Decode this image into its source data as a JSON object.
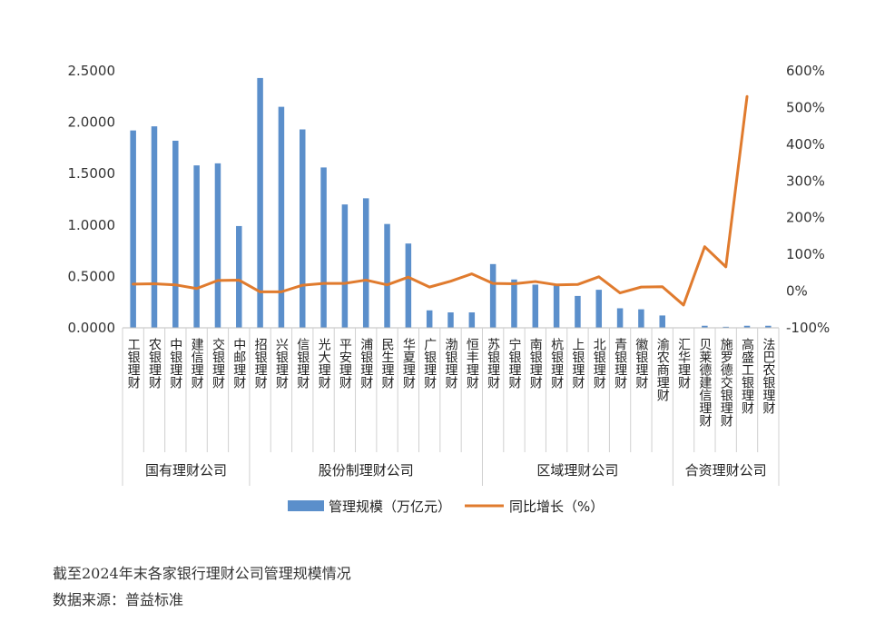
{
  "chart_data": {
    "type": "bar+line",
    "categories": [
      "工银理财",
      "农银理财",
      "中银理财",
      "建信理财",
      "交银理财",
      "中邮理财",
      "招银理财",
      "兴银理财",
      "信银理财",
      "光大理财",
      "平安理财",
      "浦银理财",
      "民生理财",
      "华夏理财",
      "广银理财",
      "渤银理财",
      "恒丰理财",
      "苏银理财",
      "宁银理财",
      "南银理财",
      "杭银理财",
      "上银理财",
      "北银理财",
      "青银理财",
      "徽银理财",
      "渝农商理财",
      "汇华理财",
      "贝莱德建信理财",
      "施罗德交银理财",
      "高盛工银理财",
      "法巴农银理财"
    ],
    "groups": [
      {
        "label": "国有理财公司",
        "count": 6
      },
      {
        "label": "股份制理财公司",
        "count": 11
      },
      {
        "label": "区域理财公司",
        "count": 9
      },
      {
        "label": "合资理财公司",
        "count": 5
      }
    ],
    "series": [
      {
        "name": "管理规模（万亿元）",
        "type": "bar",
        "axis": "left",
        "color": "#5b8fcb",
        "values": [
          1.92,
          1.96,
          1.82,
          1.58,
          1.6,
          0.99,
          2.43,
          2.15,
          1.93,
          1.56,
          1.2,
          1.26,
          1.01,
          0.82,
          0.17,
          0.15,
          0.15,
          0.62,
          0.47,
          0.42,
          0.41,
          0.31,
          0.37,
          0.19,
          0.18,
          0.12,
          0.0,
          0.02,
          0.01,
          0.02,
          0.02
        ]
      },
      {
        "name": "同比增长（%）",
        "type": "line",
        "axis": "right",
        "color": "#e07b2e",
        "values": [
          19,
          20,
          17,
          7,
          29,
          30,
          -2,
          -2,
          16,
          21,
          21,
          30,
          17,
          38,
          11,
          27,
          47,
          21,
          20,
          26,
          17,
          18,
          39,
          -5,
          11,
          12,
          -38,
          121,
          66,
          530,
          null
        ]
      }
    ],
    "y_left": {
      "min": 0,
      "max": 2.5,
      "step": 0.5,
      "tick_labels": [
        "0.0000",
        "0.5000",
        "1.0000",
        "1.5000",
        "2.0000",
        "2.5000"
      ]
    },
    "y_right": {
      "min": -100,
      "max": 600,
      "step": 100,
      "tick_labels": [
        "-100%",
        "0%",
        "100%",
        "200%",
        "300%",
        "400%",
        "500%",
        "600%"
      ]
    },
    "grid": false,
    "legend_position": "bottom"
  },
  "caption": {
    "title": "截至2024年末各家银行理财公司管理规模情况",
    "source": "数据来源：普益标准"
  }
}
